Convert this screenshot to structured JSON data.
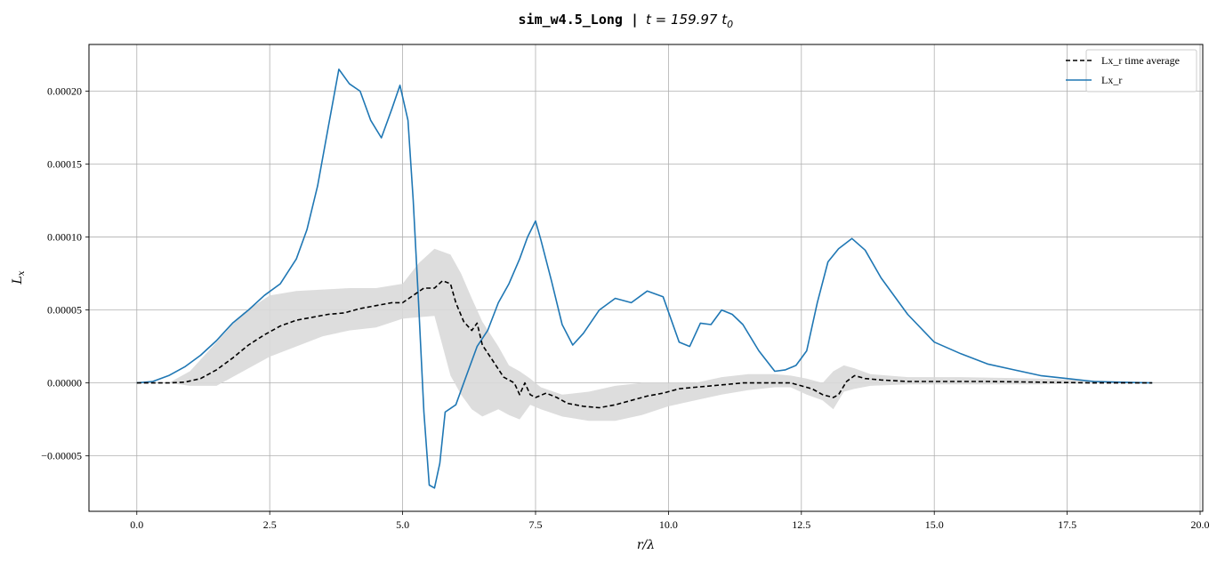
{
  "chart_data": {
    "type": "line",
    "title": "sim_w4.5_Long | t = 159.97 t_0",
    "title_mono": "sim_w4.5_Long |",
    "title_math": "t = 159.97 t",
    "title_math_sub": "0",
    "xlabel": "r/λ",
    "ylabel": "L",
    "ylabel_sub": "x",
    "xlim": [
      -0.9,
      20.05
    ],
    "ylim": [
      -8.8e-05,
      0.000232
    ],
    "xticks": [
      0.0,
      2.5,
      5.0,
      7.5,
      10.0,
      12.5,
      15.0,
      17.5,
      20.0
    ],
    "xtick_labels": [
      "0.0",
      "2.5",
      "5.0",
      "7.5",
      "10.0",
      "12.5",
      "15.0",
      "17.5",
      "20.0"
    ],
    "yticks": [
      -5e-05,
      0.0,
      5e-05,
      0.0001,
      0.00015,
      0.0002
    ],
    "ytick_labels": [
      "−0.00005",
      "0.00000",
      "0.00005",
      "0.00010",
      "0.00015",
      "0.00020"
    ],
    "grid": true,
    "legend_position": "top-right",
    "series": [
      {
        "name": "Lx_r time average",
        "color": "#000000",
        "style": "dashed",
        "x": [
          0.0,
          0.3,
          0.6,
          0.9,
          1.2,
          1.5,
          1.8,
          2.1,
          2.4,
          2.7,
          3.0,
          3.3,
          3.6,
          3.9,
          4.2,
          4.5,
          4.8,
          5.0,
          5.2,
          5.4,
          5.6,
          5.75,
          5.9,
          6.0,
          6.15,
          6.3,
          6.4,
          6.5,
          6.7,
          6.9,
          7.1,
          7.2,
          7.3,
          7.4,
          7.5,
          7.7,
          7.9,
          8.1,
          8.4,
          8.7,
          9.0,
          9.3,
          9.6,
          9.9,
          10.2,
          10.5,
          10.8,
          11.1,
          11.4,
          11.7,
          12.0,
          12.3,
          12.5,
          12.7,
          12.9,
          13.1,
          13.2,
          13.35,
          13.5,
          13.7,
          14.0,
          14.5,
          15.0,
          15.5,
          16.0,
          17.0,
          18.0,
          19.1
        ],
        "y": [
          0.0,
          0.0,
          0.0,
          5e-07,
          3e-06,
          9e-06,
          1.7e-05,
          2.6e-05,
          3.3e-05,
          3.9e-05,
          4.3e-05,
          4.5e-05,
          4.7e-05,
          4.8e-05,
          5.1e-05,
          5.3e-05,
          5.5e-05,
          5.5e-05,
          6e-05,
          6.5e-05,
          6.5e-05,
          7e-05,
          6.8e-05,
          5.5e-05,
          4.2e-05,
          3.6e-05,
          4.1e-05,
          2.6e-05,
          1.5e-05,
          4e-06,
          0.0,
          -8e-06,
          0.0,
          -8e-06,
          -1e-05,
          -7e-06,
          -1e-05,
          -1.4e-05,
          -1.6e-05,
          -1.7e-05,
          -1.5e-05,
          -1.2e-05,
          -9e-06,
          -7e-06,
          -4e-06,
          -3e-06,
          -2e-06,
          -1e-06,
          0.0,
          0.0,
          0.0,
          0.0,
          -2e-06,
          -4e-06,
          -8e-06,
          -1e-05,
          -8e-06,
          1e-06,
          5e-06,
          3e-06,
          2e-06,
          1e-06,
          1e-06,
          1e-06,
          1e-06,
          5e-07,
          0.0,
          0.0
        ]
      },
      {
        "name": "Lx_r",
        "color": "#1f77b4",
        "style": "solid",
        "x": [
          0.0,
          0.3,
          0.6,
          0.9,
          1.2,
          1.5,
          1.8,
          2.1,
          2.4,
          2.7,
          3.0,
          3.2,
          3.4,
          3.6,
          3.8,
          4.0,
          4.2,
          4.4,
          4.6,
          4.8,
          4.95,
          5.1,
          5.2,
          5.3,
          5.4,
          5.5,
          5.6,
          5.7,
          5.8,
          6.0,
          6.2,
          6.4,
          6.6,
          6.8,
          7.0,
          7.2,
          7.35,
          7.5,
          7.6,
          7.8,
          8.0,
          8.2,
          8.4,
          8.7,
          9.0,
          9.3,
          9.6,
          9.9,
          10.2,
          10.4,
          10.6,
          10.8,
          11.0,
          11.2,
          11.4,
          11.7,
          12.0,
          12.2,
          12.4,
          12.6,
          12.8,
          13.0,
          13.2,
          13.45,
          13.7,
          14.0,
          14.5,
          15.0,
          15.5,
          16.0,
          16.5,
          17.0,
          17.5,
          18.0,
          18.5,
          19.1
        ],
        "y": [
          0.0,
          1e-06,
          5e-06,
          1.1e-05,
          1.9e-05,
          2.9e-05,
          4.1e-05,
          5e-05,
          6e-05,
          6.8e-05,
          8.5e-05,
          0.000105,
          0.000135,
          0.000175,
          0.000215,
          0.000205,
          0.0002,
          0.00018,
          0.000168,
          0.000188,
          0.000204,
          0.00018,
          0.000125,
          5.5e-05,
          -2e-05,
          -7e-05,
          -7.2e-05,
          -5.5e-05,
          -2e-05,
          -1.5e-05,
          5e-06,
          2.5e-05,
          3.6e-05,
          5.5e-05,
          6.8e-05,
          8.5e-05,
          0.0001,
          0.000111,
          9.8e-05,
          7e-05,
          4e-05,
          2.6e-05,
          3.4e-05,
          5e-05,
          5.8e-05,
          5.5e-05,
          6.3e-05,
          5.9e-05,
          2.8e-05,
          2.5e-05,
          4.1e-05,
          4e-05,
          5e-05,
          4.7e-05,
          4e-05,
          2.2e-05,
          8e-06,
          9e-06,
          1.2e-05,
          2.2e-05,
          5.5e-05,
          8.3e-05,
          9.2e-05,
          9.9e-05,
          9.1e-05,
          7.2e-05,
          4.7e-05,
          2.8e-05,
          2e-05,
          1.3e-05,
          9e-06,
          5e-06,
          3e-06,
          1e-06,
          5e-07,
          0.0
        ]
      }
    ],
    "band": {
      "color": "#d9d9d9",
      "x": [
        0.0,
        0.6,
        1.0,
        1.5,
        2.0,
        2.5,
        3.0,
        3.5,
        4.0,
        4.5,
        5.0,
        5.3,
        5.6,
        5.9,
        6.1,
        6.3,
        6.5,
        6.8,
        7.0,
        7.2,
        7.4,
        7.6,
        8.0,
        8.5,
        9.0,
        9.5,
        10.0,
        10.5,
        11.0,
        11.5,
        12.0,
        12.3,
        12.6,
        12.9,
        13.1,
        13.3,
        13.5,
        13.8,
        14.5,
        15.5,
        17.0,
        18.5,
        19.1
      ],
      "upper": [
        0.0,
        0.0,
        8e-06,
        2.8e-05,
        4.8e-05,
        6e-05,
        6.3e-05,
        6.4e-05,
        6.5e-05,
        6.5e-05,
        6.8e-05,
        8.2e-05,
        9.2e-05,
        8.8e-05,
        7.5e-05,
        5.8e-05,
        4.2e-05,
        2.5e-05,
        1.2e-05,
        8e-06,
        3e-06,
        -3e-06,
        -8e-06,
        -6e-06,
        -2e-06,
        0.0,
        0.0,
        0.0,
        4e-06,
        6e-06,
        6e-06,
        5e-06,
        3e-06,
        0.0,
        8e-06,
        1.2e-05,
        1e-05,
        6e-06,
        4e-06,
        4e-06,
        3e-06,
        1e-06,
        0.0
      ],
      "lower": [
        0.0,
        0.0,
        -2e-06,
        -2e-06,
        8e-06,
        1.8e-05,
        2.5e-05,
        3.2e-05,
        3.6e-05,
        3.8e-05,
        4.4e-05,
        4.5e-05,
        4.6e-05,
        5e-06,
        -8e-06,
        -1.8e-05,
        -2.3e-05,
        -1.8e-05,
        -2.2e-05,
        -2.5e-05,
        -1.5e-05,
        -1.8e-05,
        -2.3e-05,
        -2.6e-05,
        -2.6e-05,
        -2.2e-05,
        -1.6e-05,
        -1.2e-05,
        -8e-06,
        -5e-06,
        -3e-06,
        -3e-06,
        -8e-06,
        -1.2e-05,
        -1.8e-05,
        -6e-06,
        -4e-06,
        -2e-06,
        -1e-06,
        -1e-06,
        -1e-06,
        0.0,
        0.0
      ]
    }
  }
}
